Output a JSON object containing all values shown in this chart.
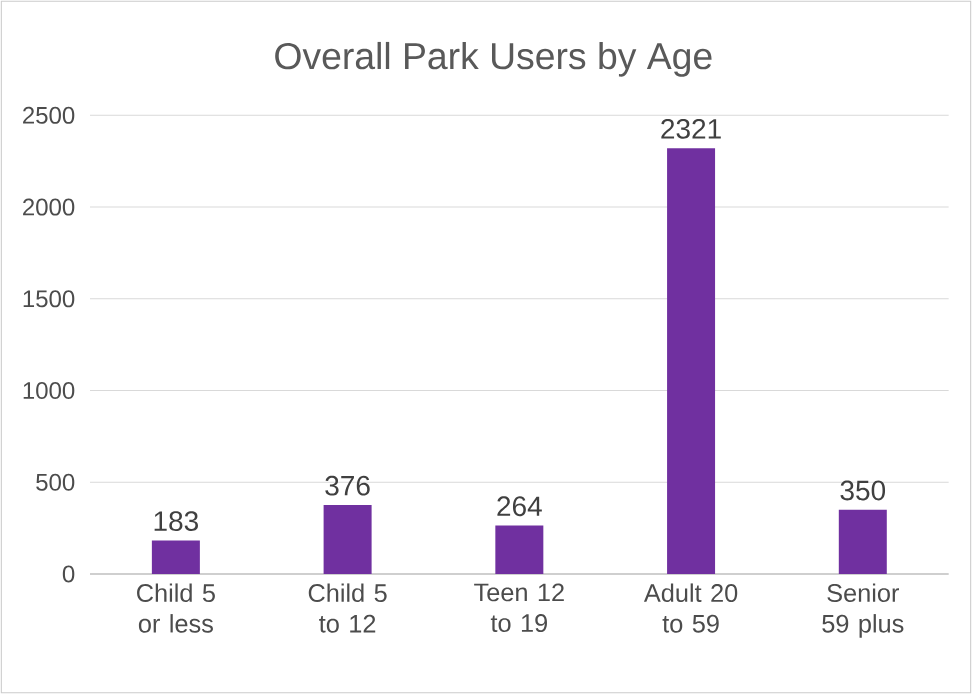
{
  "chart_data": {
    "type": "bar",
    "title": "Overall Park Users by Age",
    "categories": [
      "Child 5 or less",
      "Child 5 to 12",
      "Teen 12 to 19",
      "Adult 20 to 59",
      "Senior 59 plus"
    ],
    "values": [
      183,
      376,
      264,
      2321,
      350
    ],
    "color": "#7030a0",
    "ylim": [
      0,
      2500
    ],
    "yticks": [
      0,
      500,
      1000,
      1500,
      2000,
      2500
    ],
    "grid": "y",
    "data_labels": true
  }
}
